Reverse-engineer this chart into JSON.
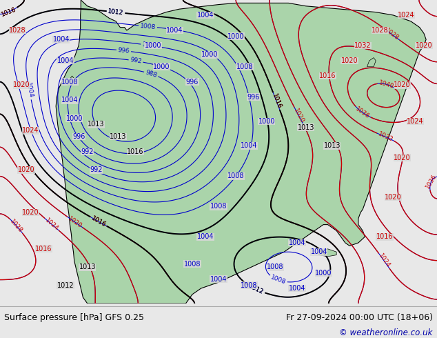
{
  "title_left": "Surface pressure [hPa] GFS 0.25",
  "title_right": "Fr 27-09-2024 00:00 UTC (18+06)",
  "copyright": "© weatheronline.co.uk",
  "bg_color": "#d8d8d8",
  "land_color": "#aad4aa",
  "ocean_color": "#d8d8d8",
  "blue_color": "#0000cc",
  "red_color": "#cc0000",
  "black_color": "#000000",
  "footer_bg": "#e8e8e8",
  "copyright_color": "#0000aa",
  "footer_sep_color": "#aaaaaa"
}
